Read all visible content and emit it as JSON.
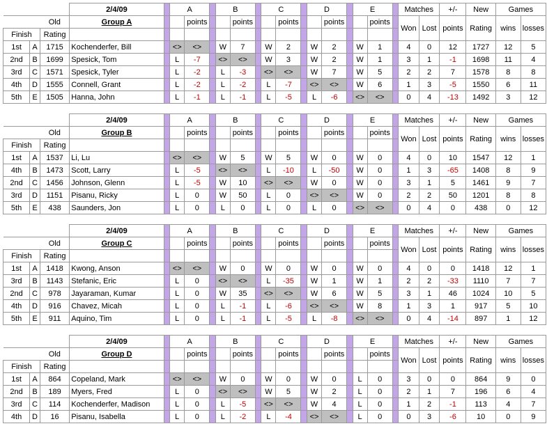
{
  "date": "2/4/09",
  "labels": {
    "finish": "Finish",
    "old": "Old",
    "rating": "Rating",
    "points": "points",
    "matches": "Matches",
    "won": "Won",
    "lost": "Lost",
    "plusminus": "+/-",
    "new": "New",
    "games": "Games",
    "wins": "wins",
    "losses": "losses"
  },
  "opp_letters": [
    "A",
    "B",
    "C",
    "D",
    "E"
  ],
  "diag_symbol": "<>",
  "colors": {
    "gap": "#c3a6e8",
    "diag": "#bfbfbf",
    "neg": "#c00000",
    "border": "#999999"
  },
  "groups": [
    {
      "title": "Group A",
      "rows": [
        {
          "finish": "1st",
          "letter": "A",
          "rating": 1715,
          "name": "Kochenderfer, Bill",
          "cells": [
            null,
            [
              "W",
              7
            ],
            [
              "W",
              2
            ],
            [
              "W",
              2
            ],
            [
              "W",
              1
            ]
          ],
          "won": 4,
          "lost": 0,
          "pm": 12,
          "new": 1727,
          "gw": 12,
          "gl": 5
        },
        {
          "finish": "2nd",
          "letter": "B",
          "rating": 1699,
          "name": "Spesick, Tom",
          "cells": [
            [
              "L",
              -7
            ],
            null,
            [
              "W",
              3
            ],
            [
              "W",
              2
            ],
            [
              "W",
              1
            ]
          ],
          "won": 3,
          "lost": 1,
          "pm": -1,
          "new": 1698,
          "gw": 11,
          "gl": 4
        },
        {
          "finish": "3rd",
          "letter": "C",
          "rating": 1571,
          "name": "Spesick, Tyler",
          "cells": [
            [
              "L",
              -2
            ],
            [
              "L",
              -3
            ],
            null,
            [
              "W",
              7
            ],
            [
              "W",
              5
            ]
          ],
          "won": 2,
          "lost": 2,
          "pm": 7,
          "new": 1578,
          "gw": 8,
          "gl": 8
        },
        {
          "finish": "4th",
          "letter": "D",
          "rating": 1555,
          "name": "Connell, Grant",
          "cells": [
            [
              "L",
              -2
            ],
            [
              "L",
              -2
            ],
            [
              "L",
              -7
            ],
            null,
            [
              "W",
              6
            ]
          ],
          "won": 1,
          "lost": 3,
          "pm": -5,
          "new": 1550,
          "gw": 6,
          "gl": 11
        },
        {
          "finish": "5th",
          "letter": "E",
          "rating": 1505,
          "name": "Hanna, John",
          "cells": [
            [
              "L",
              -1
            ],
            [
              "L",
              -1
            ],
            [
              "L",
              -5
            ],
            [
              "L",
              -6
            ],
            null
          ],
          "won": 0,
          "lost": 4,
          "pm": -13,
          "new": 1492,
          "gw": 3,
          "gl": 12
        }
      ]
    },
    {
      "title": "Group B",
      "rows": [
        {
          "finish": "1st",
          "letter": "A",
          "rating": 1537,
          "name": "Li, Lu",
          "cells": [
            null,
            [
              "W",
              5
            ],
            [
              "W",
              5
            ],
            [
              "W",
              0
            ],
            [
              "W",
              0
            ]
          ],
          "won": 4,
          "lost": 0,
          "pm": 10,
          "new": 1547,
          "gw": 12,
          "gl": 1
        },
        {
          "finish": "4th",
          "letter": "B",
          "rating": 1473,
          "name": "Scott, Larry",
          "cells": [
            [
              "L",
              -5
            ],
            null,
            [
              "L",
              -10
            ],
            [
              "L",
              -50
            ],
            [
              "W",
              0
            ]
          ],
          "won": 1,
          "lost": 3,
          "pm": -65,
          "new": 1408,
          "gw": 8,
          "gl": 9
        },
        {
          "finish": "2nd",
          "letter": "C",
          "rating": 1456,
          "name": "Johnson, Glenn",
          "cells": [
            [
              "L",
              -5
            ],
            [
              "W",
              10
            ],
            null,
            [
              "W",
              0
            ],
            [
              "W",
              0
            ]
          ],
          "won": 3,
          "lost": 1,
          "pm": 5,
          "new": 1461,
          "gw": 9,
          "gl": 7
        },
        {
          "finish": "3rd",
          "letter": "D",
          "rating": 1151,
          "name": "Pisanu, Ricky",
          "cells": [
            [
              "L",
              0
            ],
            [
              "W",
              50
            ],
            [
              "L",
              0
            ],
            null,
            [
              "W",
              0
            ]
          ],
          "won": 2,
          "lost": 2,
          "pm": 50,
          "new": 1201,
          "gw": 8,
          "gl": 8
        },
        {
          "finish": "5th",
          "letter": "E",
          "rating": 438,
          "name": "Saunders, Jon",
          "cells": [
            [
              "L",
              0
            ],
            [
              "L",
              0
            ],
            [
              "L",
              0
            ],
            [
              "L",
              0
            ],
            null
          ],
          "won": 0,
          "lost": 4,
          "pm": 0,
          "new": 438,
          "gw": 0,
          "gl": 12
        }
      ]
    },
    {
      "title": "Group C",
      "rows": [
        {
          "finish": "1st",
          "letter": "A",
          "rating": 1418,
          "name": "Kwong, Anson",
          "cells": [
            null,
            [
              "W",
              0
            ],
            [
              "W",
              0
            ],
            [
              "W",
              0
            ],
            [
              "W",
              0
            ]
          ],
          "won": 4,
          "lost": 0,
          "pm": 0,
          "new": 1418,
          "gw": 12,
          "gl": 1
        },
        {
          "finish": "3rd",
          "letter": "B",
          "rating": 1143,
          "name": "Stefanic, Eric",
          "cells": [
            [
              "L",
              0
            ],
            null,
            [
              "L",
              -35
            ],
            [
              "W",
              1
            ],
            [
              "W",
              1
            ]
          ],
          "won": 2,
          "lost": 2,
          "pm": -33,
          "new": 1110,
          "gw": 7,
          "gl": 7
        },
        {
          "finish": "2nd",
          "letter": "C",
          "rating": 978,
          "name": "Jayaraman, Kumar",
          "cells": [
            [
              "L",
              0
            ],
            [
              "W",
              35
            ],
            null,
            [
              "W",
              6
            ],
            [
              "W",
              5
            ]
          ],
          "won": 3,
          "lost": 1,
          "pm": 46,
          "new": 1024,
          "gw": 10,
          "gl": 5
        },
        {
          "finish": "4th",
          "letter": "D",
          "rating": 916,
          "name": "Chavez, Micah",
          "cells": [
            [
              "L",
              0
            ],
            [
              "L",
              -1
            ],
            [
              "L",
              -6
            ],
            null,
            [
              "W",
              8
            ]
          ],
          "won": 1,
          "lost": 3,
          "pm": 1,
          "new": 917,
          "gw": 5,
          "gl": 10
        },
        {
          "finish": "5th",
          "letter": "E",
          "rating": 911,
          "name": "Aquino, Tim",
          "cells": [
            [
              "L",
              0
            ],
            [
              "L",
              -1
            ],
            [
              "L",
              -5
            ],
            [
              "L",
              -8
            ],
            null
          ],
          "won": 0,
          "lost": 4,
          "pm": -14,
          "new": 897,
          "gw": 1,
          "gl": 12
        }
      ]
    },
    {
      "title": "Group D",
      "rows": [
        {
          "finish": "1st",
          "letter": "A",
          "rating": 864,
          "name": "Copeland, Mark",
          "cells": [
            null,
            [
              "W",
              0
            ],
            [
              "W",
              0
            ],
            [
              "W",
              0
            ],
            [
              "L",
              0
            ]
          ],
          "won": 3,
          "lost": 0,
          "pm": 0,
          "new": 864,
          "gw": 9,
          "gl": 0
        },
        {
          "finish": "2nd",
          "letter": "B",
          "rating": 189,
          "name": "Myers, Fred",
          "cells": [
            [
              "L",
              0
            ],
            null,
            [
              "W",
              5
            ],
            [
              "W",
              2
            ],
            [
              "L",
              0
            ]
          ],
          "won": 2,
          "lost": 1,
          "pm": 7,
          "new": 196,
          "gw": 6,
          "gl": 4
        },
        {
          "finish": "3rd",
          "letter": "C",
          "rating": 114,
          "name": "Kochenderfer, Madison",
          "cells": [
            [
              "L",
              0
            ],
            [
              "L",
              -5
            ],
            null,
            [
              "W",
              4
            ],
            [
              "L",
              0
            ]
          ],
          "won": 1,
          "lost": 2,
          "pm": -1,
          "new": 113,
          "gw": 4,
          "gl": 7
        },
        {
          "finish": "4th",
          "letter": "D",
          "rating": 16,
          "name": "Pisanu, Isabella",
          "cells": [
            [
              "L",
              0
            ],
            [
              "L",
              -2
            ],
            [
              "L",
              -4
            ],
            null,
            [
              "L",
              0
            ]
          ],
          "won": 0,
          "lost": 3,
          "pm": -6,
          "new": 10,
          "gw": 0,
          "gl": 9
        }
      ]
    }
  ]
}
